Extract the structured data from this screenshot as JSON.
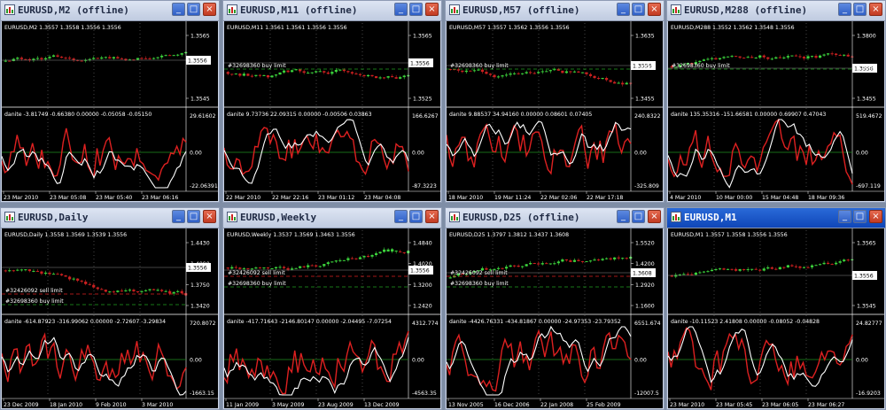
{
  "colors": {
    "bull": "#3cd43c",
    "bear": "#cc2020",
    "osc_main": "#dd2020",
    "osc_sig": "#ffffff",
    "level": "#1f8f1f",
    "grid": "#ffffff",
    "title_active": "#0f46b8"
  },
  "icons": {
    "chart": "chart-icon",
    "minimize": "minimize-icon",
    "maximize": "maximize-icon",
    "close": "close-icon"
  },
  "buttons": {
    "minimize": "_",
    "maximize": "□",
    "close": "×"
  },
  "windows": [
    {
      "title": "EURUSD,M2 (offline)",
      "active": false,
      "info": "EURUSD,M2  1.3557 1.3558 1.3556 1.3556",
      "price_ticks": [
        "1.3565",
        "1.3545"
      ],
      "price_tag": "1.3556",
      "orders": [],
      "osc_info": "danite -3.81749 -0.66380 0.00000 -0.05058 -0.05150",
      "osc_ticks": [
        "29.61602",
        "0.00",
        "-22.06391"
      ],
      "time_labels": [
        "23 Mar 2010",
        "23 Mar 05:08",
        "23 Mar 05:40",
        "23 Mar 06:16"
      ]
    },
    {
      "title": "EURUSD,M11 (offline)",
      "active": false,
      "info": "EURUSD,M11  1.3561 1.3561 1.3556 1.3556",
      "price_ticks": [
        "1.3565",
        "1.3525"
      ],
      "price_tag": "1.3556",
      "orders": [
        "#32698360 buy limit"
      ],
      "osc_info": "danite 9.73736 22.09315 0.00000 -0.00506 0.03863",
      "osc_ticks": [
        "166.6267",
        "0.00",
        "-87.3223"
      ],
      "time_labels": [
        "22 Mar 2010",
        "22 Mar 22:16",
        "23 Mar 01:12",
        "23 Mar 04:08"
      ]
    },
    {
      "title": "EURUSD,M57 (offline)",
      "active": false,
      "info": "EURUSD,M57  1.3557 1.3562 1.3556 1.3556",
      "price_ticks": [
        "1.3635",
        "1.3515",
        "1.3455"
      ],
      "price_tag": "1.3556",
      "orders": [
        "#32698360 buy limit"
      ],
      "osc_info": "danite 9.88537 34.94160 0.00000 0.08601 0.07405",
      "osc_ticks": [
        "240.8322",
        "0.00",
        "-325.809"
      ],
      "time_labels": [
        "18 Mar 2010",
        "19 Mar 11:24",
        "22 Mar 02:06",
        "22 Mar 17:18"
      ]
    },
    {
      "title": "EURUSD,M288 (offline)",
      "active": false,
      "info": "EURUSD,M288  1.3552 1.3562 1.3548 1.3556",
      "price_ticks": [
        "1.3800",
        "1.3635",
        "1.3455"
      ],
      "price_tag": "1.3556",
      "orders": [
        "#32698360 buy limit"
      ],
      "osc_info": "danite 135.35316 -151.66581 0.00000 0.69907 0.47043",
      "osc_ticks": [
        "519.4672",
        "0.00",
        "-697.119"
      ],
      "time_labels": [
        "4 Mar 2010",
        "10 Mar 00:00",
        "15 Mar 04:48",
        "18 Mar 09:36"
      ]
    },
    {
      "title": "EURUSD,Daily",
      "active": false,
      "info": "EURUSD,Daily  1.3558 1.3569 1.3539 1.3556",
      "price_ticks": [
        "1.4430",
        "1.4090",
        "1.3750",
        "1.3420"
      ],
      "price_tag": "1.3556",
      "orders": [
        "#32426092 sell limit",
        "#32698360 buy limit"
      ],
      "osc_info": "danite -614.87923 -316.99062 0.00000 -2.72607 -3.29834",
      "osc_ticks": [
        "720.8072",
        "0.00",
        "-1663.15"
      ],
      "time_labels": [
        "23 Dec 2009",
        "18 Jan 2010",
        "9 Feb 2010",
        "3 Mar 2010"
      ]
    },
    {
      "title": "EURUSD,Weekly",
      "active": false,
      "info": "EURUSD,Weekly  1.3537 1.3569 1.3463 1.3556",
      "price_ticks": [
        "1.4840",
        "1.4020",
        "1.3200",
        "1.2420"
      ],
      "price_tag": "1.3556",
      "orders": [
        "#32426092 sell limit",
        "#32698360 buy limit"
      ],
      "osc_info": "danite -417.71643 -2146.80147 0.00000 -2.04495 -7.07254",
      "osc_ticks": [
        "4312.774",
        "0.00",
        "-4563.35"
      ],
      "time_labels": [
        "11 Jan 2009",
        "3 May 2009",
        "23 Aug 2009",
        "13 Dec 2009"
      ]
    },
    {
      "title": "EURUSD,D25 (offline)",
      "active": false,
      "info": "EURUSD,D25  1.3797 1.3812 1.3437 1.3608",
      "price_ticks": [
        "1.5520",
        "1.4200",
        "1.2920",
        "1.1600"
      ],
      "price_tag": "1.3608",
      "orders": [
        "#32426092 sell limit",
        "#32698360 buy limit"
      ],
      "osc_info": "danite -4426.76331 -434.81867 0.00000 -24.97353 -23.79352",
      "osc_ticks": [
        "6551.674",
        "0.00",
        "-12007.5"
      ],
      "time_labels": [
        "13 Nov 2005",
        "16 Dec 2006",
        "22 Jan 2008",
        "25 Feb 2009"
      ]
    },
    {
      "title": "EURUSD,M1",
      "active": true,
      "info": "EURUSD,M1  1.3557 1.3558 1.3556 1.3556",
      "price_ticks": [
        "1.3565",
        "1.3545"
      ],
      "price_tag": "1.3556",
      "orders": [],
      "osc_info": "danite -10.11523 2.41808 0.00000 -0.08052 -0.04828",
      "osc_ticks": [
        "24.82777",
        "0.00",
        "-16.9203"
      ],
      "time_labels": [
        "23 Mar 2010",
        "23 Mar 05:45",
        "23 Mar 06:05",
        "23 Mar 06:27"
      ]
    }
  ]
}
